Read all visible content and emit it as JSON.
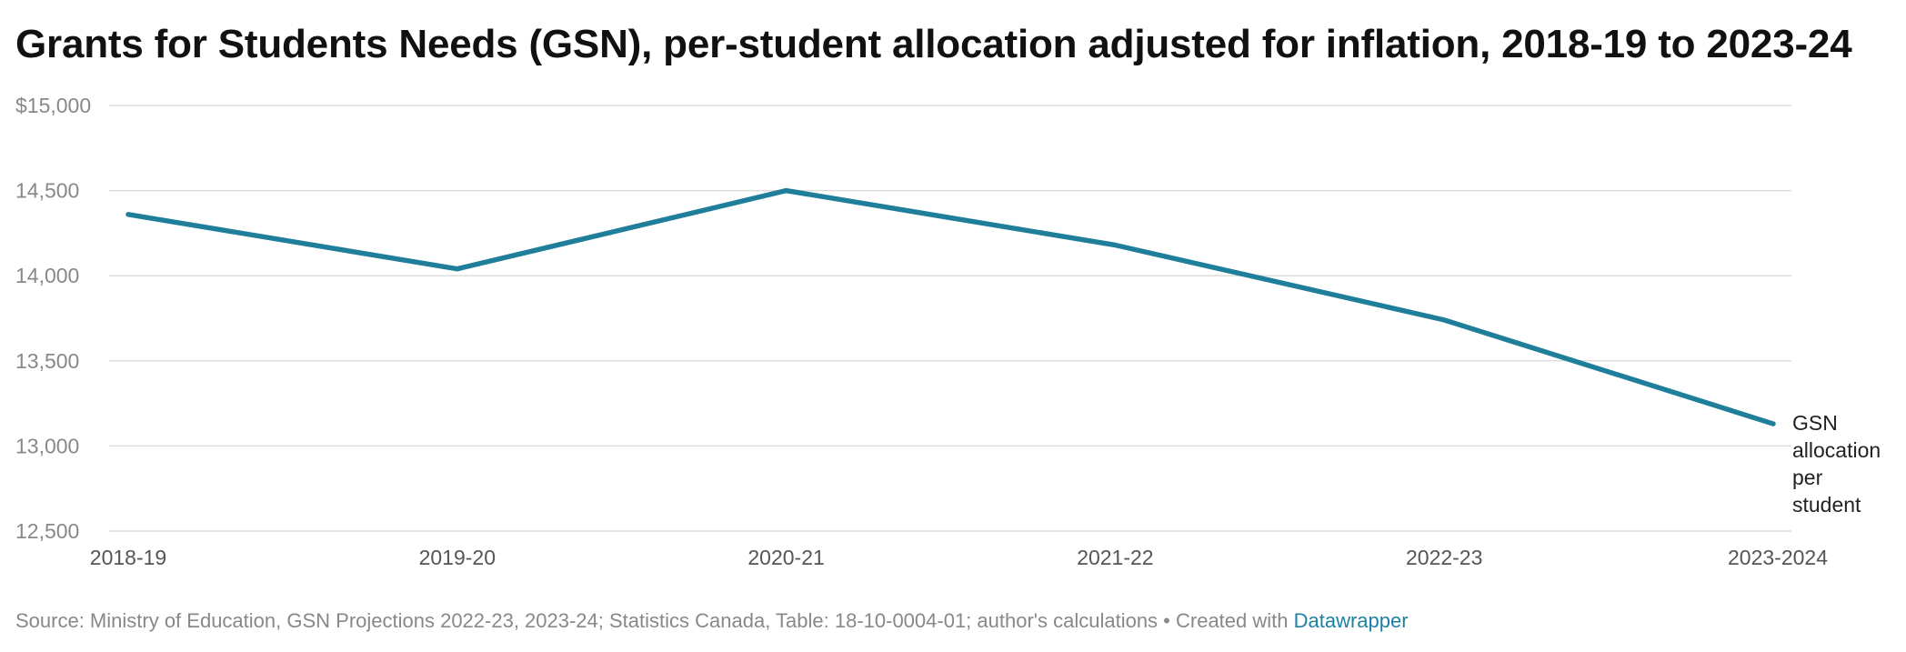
{
  "title": "Grants for Students Needs (GSN), per-student allocation adjusted for inflation, 2018-19 to 2023-24",
  "footer": {
    "source": "Source: Ministry of Education, GSN Projections 2022-23, 2023-24; Statistics Canada, Table: 18-10-0004-01; author's calculations",
    "separator": " • ",
    "created_with": "Created with ",
    "link_label": "Datawrapper"
  },
  "colors": {
    "line": "#1f7f9b",
    "grid": "#dddddd",
    "tick_label": "#888888",
    "series_label": "#222222",
    "link": "#1d81a2"
  },
  "chart_data": {
    "type": "line",
    "title": "Grants for Students Needs (GSN), per-student allocation adjusted for inflation, 2018-19 to 2023-24",
    "xlabel": "",
    "ylabel": "",
    "categories": [
      "2018-19",
      "2019-20",
      "2020-21",
      "2021-22",
      "2022-23",
      "2023-2024"
    ],
    "series": [
      {
        "name": "GSN allocation per student",
        "values": [
          14360,
          14040,
          14500,
          14180,
          13740,
          13130
        ]
      }
    ],
    "series_label_lines": [
      "GSN",
      "allocation",
      "per",
      "student"
    ],
    "ylim": [
      12500,
      15000
    ],
    "yticks": [
      12500,
      13000,
      13500,
      14000,
      14500,
      15000
    ],
    "ytick_labels": [
      "12,500",
      "13,000",
      "13,500",
      "14,000",
      "14,500",
      "$15,000"
    ],
    "grid": true,
    "legend": "none (direct label at end of line)"
  }
}
